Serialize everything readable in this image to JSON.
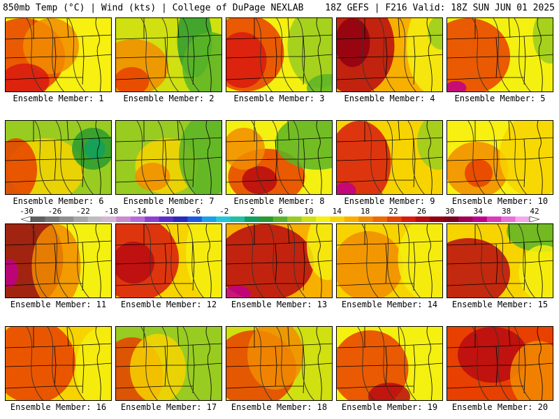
{
  "header": {
    "title": "850mb Temp (°C) | Wind (kts) | College of DuPage NEXLAB",
    "run_info": "18Z GEFS | F216 Valid: 18Z SUN JUN 01 2025"
  },
  "colorbar": {
    "ticks": [
      "-30",
      "-26",
      "-22",
      "-18",
      "-14",
      "-10",
      "-6",
      "-2",
      "2",
      "6",
      "10",
      "14",
      "18",
      "22",
      "26",
      "30",
      "34",
      "38",
      "42"
    ],
    "colors": [
      "#5f5f5f",
      "#777777",
      "#8f8f8f",
      "#a7a7a7",
      "#bdbdbd",
      "#d2b6d2",
      "#c98ad0",
      "#b86bd8",
      "#8f3fd0",
      "#5a2ec8",
      "#2a2ab8",
      "#1a5ae0",
      "#1aa0e8",
      "#20c8d8",
      "#20c0a0",
      "#10a060",
      "#2a9a30",
      "#5ab428",
      "#98cc20",
      "#d0e010",
      "#f4f010",
      "#f7d400",
      "#f7b000",
      "#f28c00",
      "#ee6a00",
      "#e84000",
      "#d81a10",
      "#b80a10",
      "#900010",
      "#7a0020",
      "#a00050",
      "#c0008a",
      "#d83ab8",
      "#e870d8",
      "#f4a8ec"
    ]
  },
  "members": [
    {
      "label": "Ensemble Member: 1"
    },
    {
      "label": "Ensemble Member: 2"
    },
    {
      "label": "Ensemble Member: 3"
    },
    {
      "label": "Ensemble Member: 4"
    },
    {
      "label": "Ensemble Member: 5"
    },
    {
      "label": "Ensemble Member: 6"
    },
    {
      "label": "Ensemble Member: 7"
    },
    {
      "label": "Ensemble Member: 8"
    },
    {
      "label": "Ensemble Member: 9"
    },
    {
      "label": "Ensemble Member: 10"
    },
    {
      "label": "Ensemble Member: 11"
    },
    {
      "label": "Ensemble Member: 12"
    },
    {
      "label": "Ensemble Member: 13"
    },
    {
      "label": "Ensemble Member: 14"
    },
    {
      "label": "Ensemble Member: 15"
    },
    {
      "label": "Ensemble Member: 16"
    },
    {
      "label": "Ensemble Member: 17"
    },
    {
      "label": "Ensemble Member: 18"
    },
    {
      "label": "Ensemble Member: 19"
    },
    {
      "label": "Ensemble Member: 20"
    }
  ]
}
